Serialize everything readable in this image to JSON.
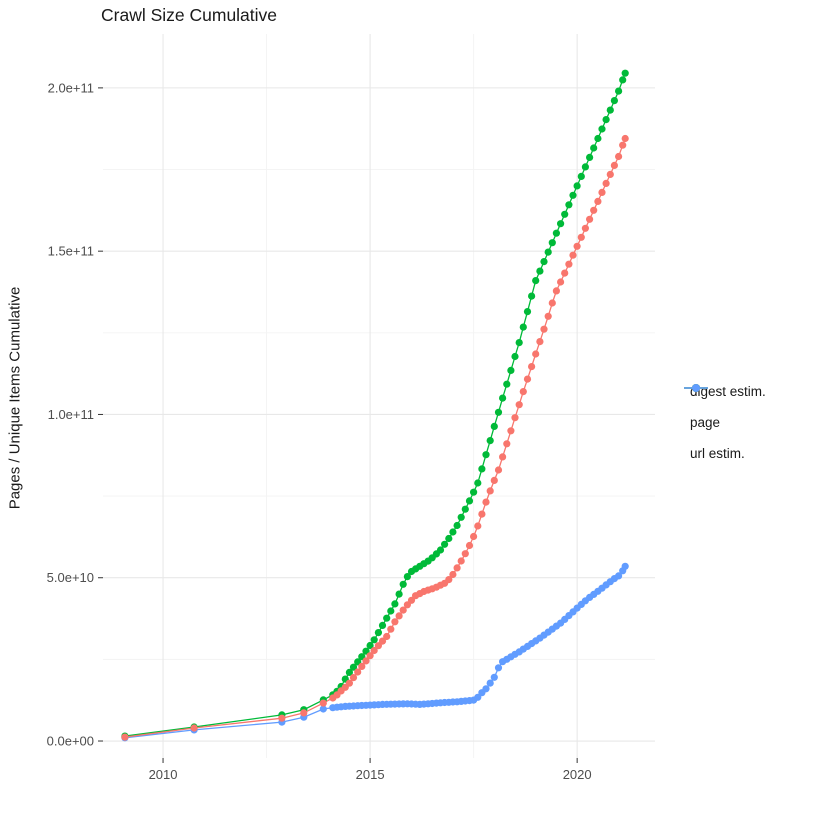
{
  "chart_data": {
    "type": "scatter",
    "title": "Crawl Size Cumulative",
    "xlabel": "",
    "ylabel": "Pages / Unique Items Cumulative",
    "value_unit": "billions (1e9) of pages / unique items",
    "grid": true,
    "background": "#ffffff",
    "gridline_major_color": "#e8e8e8",
    "gridline_minor_color": "#f3f3f3",
    "axis_text_color": "#4d4d4d",
    "tick_mark_color": "#333333",
    "x_axis": {
      "range_years": [
        2008.55,
        2021.88
      ],
      "major_ticks": [
        {
          "value": 2010,
          "label": "2010"
        },
        {
          "value": 2015,
          "label": "2015"
        },
        {
          "value": 2020,
          "label": "2020"
        }
      ],
      "minor_gridlines": [
        2012.5,
        2017.5
      ]
    },
    "y_axis": {
      "range_e9": [
        -5.2,
        216.5
      ],
      "major_ticks": [
        {
          "value_e9": 0,
          "label": "0.0e+00"
        },
        {
          "value_e9": 50,
          "label": "5.0e+10"
        },
        {
          "value_e9": 100,
          "label": "1.0e+11"
        },
        {
          "value_e9": 150,
          "label": "1.5e+11"
        },
        {
          "value_e9": 200,
          "label": "2.0e+11"
        }
      ],
      "minor_gridlines_e9": [
        25,
        75,
        125,
        175
      ]
    },
    "legend": {
      "position": "right",
      "entries": [
        "digest estim.",
        "page",
        "url estim."
      ]
    },
    "sampling": {
      "note": "sparse early crawls, then ~monthly crawls rendered as dense dots",
      "sparse_points_until": 2014.0,
      "dense_start": 2014.1,
      "dense_end": 2021.16,
      "dense_step": 0.1
    },
    "series": [
      {
        "name": "digest estim.",
        "color": "#F8766D",
        "draw_order": 3,
        "points_year_value_e9": [
          [
            2009.08,
            1.2
          ],
          [
            2010.75,
            4.0
          ],
          [
            2012.87,
            7.0
          ],
          [
            2013.4,
            8.6
          ],
          [
            2013.87,
            11.6
          ],
          [
            2014.15,
            13.5
          ],
          [
            2014.32,
            15.6
          ],
          [
            2014.47,
            17.2
          ],
          [
            2014.88,
            24.2
          ],
          [
            2015.15,
            28.5
          ],
          [
            2015.4,
            32.0
          ],
          [
            2015.6,
            36.5
          ],
          [
            2015.85,
            41.0
          ],
          [
            2016.1,
            44.5
          ],
          [
            2016.3,
            45.8
          ],
          [
            2016.55,
            46.8
          ],
          [
            2016.8,
            48.3
          ],
          [
            2016.95,
            50.0
          ],
          [
            2017.15,
            54.0
          ],
          [
            2017.35,
            58.5
          ],
          [
            2017.55,
            64.0
          ],
          [
            2017.85,
            75.0
          ],
          [
            2018.1,
            83.0
          ],
          [
            2018.4,
            95.0
          ],
          [
            2018.7,
            107.0
          ],
          [
            2019.0,
            118.5
          ],
          [
            2019.25,
            128.0
          ],
          [
            2019.47,
            137.0
          ],
          [
            2019.8,
            146.0
          ],
          [
            2020.2,
            157.0
          ],
          [
            2020.6,
            168.0
          ],
          [
            2021.0,
            179.0
          ],
          [
            2021.16,
            184.5
          ]
        ]
      },
      {
        "name": "page",
        "color": "#00BA38",
        "draw_order": 1,
        "points_year_value_e9": [
          [
            2009.08,
            1.5
          ],
          [
            2010.75,
            4.3
          ],
          [
            2012.87,
            8.0
          ],
          [
            2013.4,
            9.6
          ],
          [
            2013.87,
            12.6
          ],
          [
            2014.15,
            14.5
          ],
          [
            2014.32,
            17.0
          ],
          [
            2014.45,
            20.2
          ],
          [
            2014.83,
            26.3
          ],
          [
            2015.1,
            31.0
          ],
          [
            2015.35,
            36.5
          ],
          [
            2015.6,
            42.0
          ],
          [
            2015.8,
            48.0
          ],
          [
            2015.95,
            51.5
          ],
          [
            2016.2,
            53.5
          ],
          [
            2016.45,
            55.5
          ],
          [
            2016.7,
            58.5
          ],
          [
            2016.9,
            62.0
          ],
          [
            2017.1,
            66.0
          ],
          [
            2017.3,
            71.0
          ],
          [
            2017.45,
            74.8
          ],
          [
            2017.6,
            79.0
          ],
          [
            2017.9,
            92.0
          ],
          [
            2018.2,
            105.0
          ],
          [
            2018.6,
            122.0
          ],
          [
            2019.0,
            141.0
          ],
          [
            2019.5,
            155.5
          ],
          [
            2020.0,
            170.0
          ],
          [
            2020.5,
            184.5
          ],
          [
            2021.0,
            199.0
          ],
          [
            2021.16,
            204.5
          ]
        ]
      },
      {
        "name": "url estim.",
        "color": "#619CFF",
        "draw_order": 2,
        "points_year_value_e9": [
          [
            2009.08,
            1.0
          ],
          [
            2010.75,
            3.4
          ],
          [
            2012.87,
            5.8
          ],
          [
            2013.4,
            7.3
          ],
          [
            2013.87,
            9.8
          ],
          [
            2014.15,
            10.3
          ],
          [
            2014.4,
            10.6
          ],
          [
            2014.7,
            10.8
          ],
          [
            2015.0,
            11.0
          ],
          [
            2015.3,
            11.2
          ],
          [
            2015.6,
            11.3
          ],
          [
            2015.9,
            11.4
          ],
          [
            2016.2,
            11.2
          ],
          [
            2016.5,
            11.5
          ],
          [
            2016.8,
            11.8
          ],
          [
            2017.1,
            12.0
          ],
          [
            2017.35,
            12.3
          ],
          [
            2017.55,
            12.6
          ],
          [
            2017.65,
            14.2
          ],
          [
            2017.8,
            16.0
          ],
          [
            2018.0,
            19.5
          ],
          [
            2018.15,
            23.9
          ],
          [
            2018.6,
            27.3
          ],
          [
            2019.1,
            31.5
          ],
          [
            2019.6,
            36.1
          ],
          [
            2020.0,
            40.7
          ],
          [
            2020.25,
            43.5
          ],
          [
            2020.55,
            46.3
          ],
          [
            2020.85,
            49.3
          ],
          [
            2021.05,
            51.0
          ],
          [
            2021.16,
            53.5
          ]
        ]
      }
    ]
  }
}
